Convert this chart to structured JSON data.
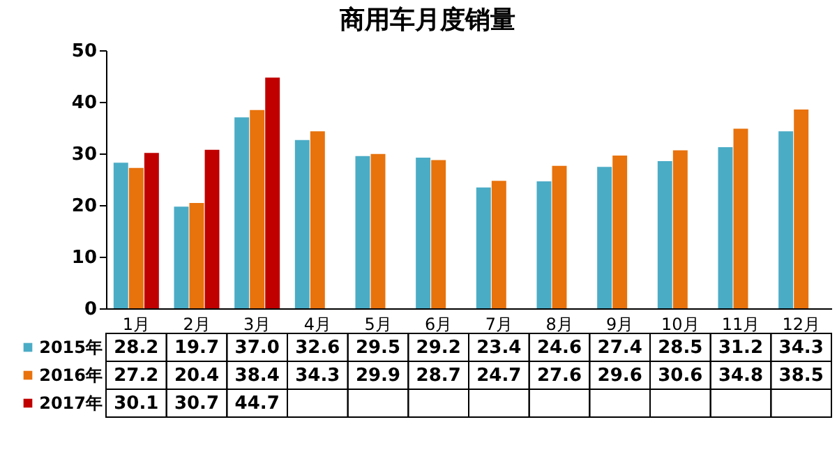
{
  "chart_data": {
    "type": "bar",
    "title": "商用车月度销量",
    "categories": [
      "1月",
      "2月",
      "3月",
      "4月",
      "5月",
      "6月",
      "7月",
      "8月",
      "9月",
      "10月",
      "11月",
      "12月"
    ],
    "series": [
      {
        "name": "2015年",
        "color": "#4bacc6",
        "values": [
          28.2,
          19.7,
          37.0,
          32.6,
          29.5,
          29.2,
          23.4,
          24.6,
          27.4,
          28.5,
          31.2,
          34.3
        ],
        "value_labels": [
          "28.2",
          "19.7",
          "37.0",
          "32.6",
          "29.5",
          "29.2",
          "23.4",
          "24.6",
          "27.4",
          "28.5",
          "31.2",
          "34.3"
        ]
      },
      {
        "name": "2016年",
        "color": "#e8720c",
        "values": [
          27.2,
          20.4,
          38.4,
          34.3,
          29.9,
          28.7,
          24.7,
          27.6,
          29.6,
          30.6,
          34.8,
          38.5
        ],
        "value_labels": [
          "27.2",
          "20.4",
          "38.4",
          "34.3",
          "29.9",
          "28.7",
          "24.7",
          "27.6",
          "29.6",
          "30.6",
          "34.8",
          "38.5"
        ]
      },
      {
        "name": "2017年",
        "color": "#c00000",
        "values": [
          30.1,
          30.7,
          44.7,
          null,
          null,
          null,
          null,
          null,
          null,
          null,
          null,
          null
        ],
        "value_labels": [
          "30.1",
          "30.7",
          "44.7",
          null,
          null,
          null,
          null,
          null,
          null,
          null,
          null,
          null
        ]
      }
    ],
    "ylim": [
      0,
      50
    ],
    "yticks": [
      0,
      10,
      20,
      30,
      40,
      50
    ],
    "legend": "bottom"
  }
}
